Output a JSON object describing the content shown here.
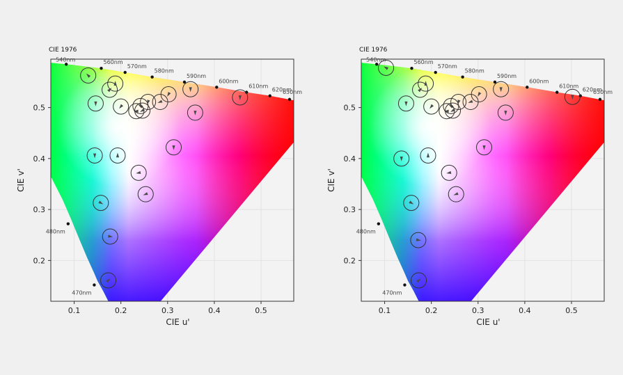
{
  "chart_data": [
    {
      "type": "scatter",
      "title": "CIE 1976",
      "xlabel": "CIE u'",
      "ylabel": "CIE v'",
      "xlim": [
        0.05,
        0.57
      ],
      "ylim": [
        0.12,
        0.595
      ],
      "xticks": [
        "0.1",
        "0.2",
        "0.3",
        "0.4",
        "0.5"
      ],
      "yticks": [
        "0.2",
        "0.3",
        "0.4",
        "0.5"
      ],
      "grid": true,
      "locus_labels": [
        {
          "label": "470nm",
          "u": 0.143,
          "v": 0.152
        },
        {
          "label": "480nm",
          "u": 0.087,
          "v": 0.272
        },
        {
          "label": "540nm",
          "u": 0.083,
          "v": 0.585
        },
        {
          "label": "560nm",
          "u": 0.158,
          "v": 0.577
        },
        {
          "label": "570nm",
          "u": 0.209,
          "v": 0.569
        },
        {
          "label": "580nm",
          "u": 0.267,
          "v": 0.56
        },
        {
          "label": "590nm",
          "u": 0.336,
          "v": 0.55
        },
        {
          "label": "600nm",
          "u": 0.405,
          "v": 0.54
        },
        {
          "label": "610nm",
          "u": 0.469,
          "v": 0.53
        },
        {
          "label": "620nm",
          "u": 0.519,
          "v": 0.523
        },
        {
          "label": "630nm",
          "u": 0.561,
          "v": 0.516
        }
      ],
      "points": [
        {
          "u": 0.13,
          "v": 0.563,
          "dir": 315
        },
        {
          "u": 0.146,
          "v": 0.508,
          "dir": 180
        },
        {
          "u": 0.176,
          "v": 0.535,
          "dir": 45
        },
        {
          "u": 0.188,
          "v": 0.547,
          "dir": 0
        },
        {
          "u": 0.2,
          "v": 0.502,
          "dir": 220
        },
        {
          "u": 0.144,
          "v": 0.406,
          "dir": 180
        },
        {
          "u": 0.193,
          "v": 0.406,
          "dir": 0
        },
        {
          "u": 0.157,
          "v": 0.313,
          "dir": 120
        },
        {
          "u": 0.177,
          "v": 0.247,
          "dir": 100
        },
        {
          "u": 0.173,
          "v": 0.161,
          "dir": 45
        },
        {
          "u": 0.233,
          "v": 0.493,
          "dir": 270
        },
        {
          "u": 0.242,
          "v": 0.503,
          "dir": 300
        },
        {
          "u": 0.246,
          "v": 0.494,
          "dir": 240
        },
        {
          "u": 0.258,
          "v": 0.511,
          "dir": 200
        },
        {
          "u": 0.284,
          "v": 0.511,
          "dir": 250
        },
        {
          "u": 0.302,
          "v": 0.526,
          "dir": 210
        },
        {
          "u": 0.349,
          "v": 0.536,
          "dir": 180
        },
        {
          "u": 0.359,
          "v": 0.49,
          "dir": 180
        },
        {
          "u": 0.313,
          "v": 0.422,
          "dir": 180
        },
        {
          "u": 0.238,
          "v": 0.372,
          "dir": 260
        },
        {
          "u": 0.253,
          "v": 0.33,
          "dir": 250
        },
        {
          "u": 0.455,
          "v": 0.52,
          "dir": 180
        }
      ]
    },
    {
      "type": "scatter",
      "title": "CIE 1976",
      "xlabel": "CIE u'",
      "ylabel": "CIE v'",
      "xlim": [
        0.05,
        0.57
      ],
      "ylim": [
        0.12,
        0.595
      ],
      "xticks": [
        "0.1",
        "0.2",
        "0.3",
        "0.4",
        "0.5"
      ],
      "yticks": [
        "0.2",
        "0.3",
        "0.4",
        "0.5"
      ],
      "grid": true,
      "locus_labels": [
        {
          "label": "470nm",
          "u": 0.143,
          "v": 0.152
        },
        {
          "label": "480nm",
          "u": 0.087,
          "v": 0.272
        },
        {
          "label": "540nm",
          "u": 0.083,
          "v": 0.585
        },
        {
          "label": "560nm",
          "u": 0.158,
          "v": 0.577
        },
        {
          "label": "570nm",
          "u": 0.209,
          "v": 0.569
        },
        {
          "label": "580nm",
          "u": 0.267,
          "v": 0.56
        },
        {
          "label": "590nm",
          "u": 0.336,
          "v": 0.55
        },
        {
          "label": "600nm",
          "u": 0.405,
          "v": 0.54
        },
        {
          "label": "610nm",
          "u": 0.469,
          "v": 0.53
        },
        {
          "label": "620nm",
          "u": 0.519,
          "v": 0.523
        },
        {
          "label": "630nm",
          "u": 0.561,
          "v": 0.516
        }
      ],
      "points": [
        {
          "u": 0.103,
          "v": 0.578,
          "dir": 300
        },
        {
          "u": 0.146,
          "v": 0.508,
          "dir": 180
        },
        {
          "u": 0.176,
          "v": 0.535,
          "dir": 45
        },
        {
          "u": 0.188,
          "v": 0.547,
          "dir": 0
        },
        {
          "u": 0.2,
          "v": 0.502,
          "dir": 220
        },
        {
          "u": 0.136,
          "v": 0.4,
          "dir": 180
        },
        {
          "u": 0.193,
          "v": 0.406,
          "dir": 0
        },
        {
          "u": 0.157,
          "v": 0.313,
          "dir": 120
        },
        {
          "u": 0.172,
          "v": 0.24,
          "dir": 100
        },
        {
          "u": 0.173,
          "v": 0.161,
          "dir": 45
        },
        {
          "u": 0.233,
          "v": 0.493,
          "dir": 270
        },
        {
          "u": 0.242,
          "v": 0.503,
          "dir": 300
        },
        {
          "u": 0.246,
          "v": 0.494,
          "dir": 240
        },
        {
          "u": 0.258,
          "v": 0.511,
          "dir": 200
        },
        {
          "u": 0.284,
          "v": 0.511,
          "dir": 250
        },
        {
          "u": 0.302,
          "v": 0.526,
          "dir": 210
        },
        {
          "u": 0.349,
          "v": 0.536,
          "dir": 180
        },
        {
          "u": 0.359,
          "v": 0.49,
          "dir": 180
        },
        {
          "u": 0.313,
          "v": 0.422,
          "dir": 180
        },
        {
          "u": 0.238,
          "v": 0.372,
          "dir": 260
        },
        {
          "u": 0.253,
          "v": 0.33,
          "dir": 250
        },
        {
          "u": 0.502,
          "v": 0.521,
          "dir": 180
        }
      ]
    }
  ]
}
